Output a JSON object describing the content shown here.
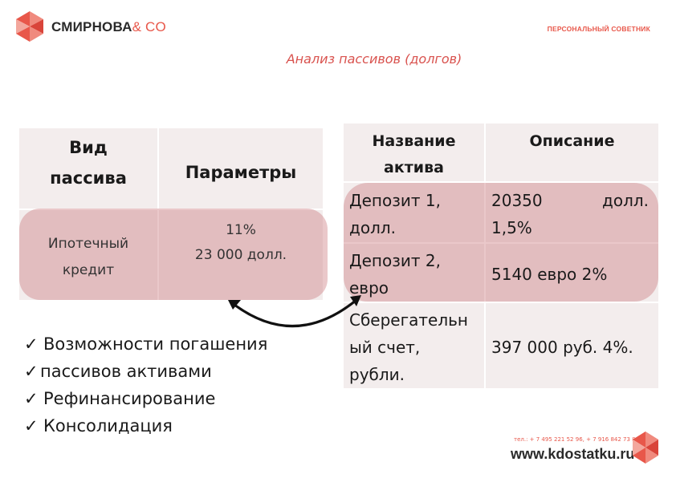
{
  "header": {
    "brand_main": "СМИРНОВА",
    "brand_co": "& CO",
    "advisor": "ПЕРСОНАЛЬНЫЙ СОВЕТНИК",
    "brand_color": "#e8574a"
  },
  "title": "Анализ пассивов (долгов)",
  "liabilities_table": {
    "headers": [
      "Вид пассива",
      "Параметры"
    ],
    "row": {
      "type": "Ипотечный кредит",
      "params": [
        "11%",
        "23 000 долл."
      ]
    }
  },
  "assets_table": {
    "headers": [
      "Название актива",
      "Описание"
    ],
    "rows": [
      {
        "name": "Депозит 1, долл.",
        "desc_parts": [
          "20350",
          "долл.",
          "1,5%"
        ]
      },
      {
        "name": "Депозит 2, евро",
        "desc": "5140 евро 2%"
      },
      {
        "name": "Сберегательный счет, рубли.",
        "desc": "397 000 руб. 4%."
      }
    ]
  },
  "checklist": [
    "Возможности погашения",
    "пассивов активами",
    "Рефинансирование",
    "Консолидация"
  ],
  "footer": {
    "phones": "тел.: + 7 495 221 52 96, + 7 916 842 73 86",
    "site": "www.kdostatku.ru"
  },
  "icons": [
    "logo-diamond-icon",
    "checkmark-icon",
    "curved-arrow-icon"
  ]
}
